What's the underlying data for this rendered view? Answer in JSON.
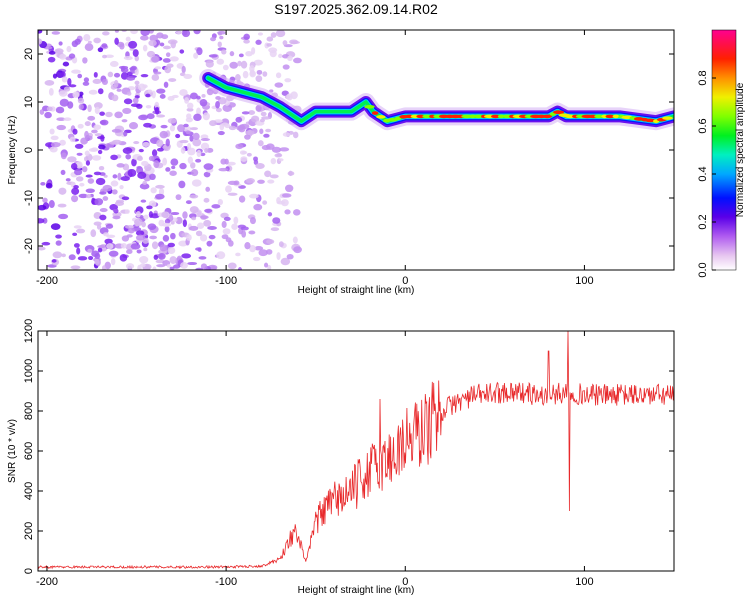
{
  "title": "S197.2025.362.09.14.R02",
  "chart_data": [
    {
      "type": "heatmap",
      "name": "spectrogram",
      "title": "S197.2025.362.09.14.R02",
      "xlabel": "Height of straight line (km)",
      "ylabel": "Frequency (Hz)",
      "xlim": [
        -205,
        150
      ],
      "ylim": [
        -25,
        25
      ],
      "x_ticks": [
        -200,
        -100,
        0,
        100
      ],
      "y_ticks": [
        -20,
        -10,
        0,
        10,
        20
      ],
      "colorbar": {
        "label": "Normalized spectral amplitude",
        "range": [
          0.0,
          1.0
        ],
        "ticks": [
          0.0,
          0.2,
          0.4,
          0.6,
          0.8
        ]
      },
      "ridge_line": {
        "description": "dominant frequency track",
        "x": [
          -110,
          -100,
          -90,
          -80,
          -70,
          -62,
          -58,
          -50,
          -40,
          -30,
          -22,
          -18,
          -10,
          0,
          10,
          20,
          40,
          60,
          80,
          85,
          90,
          100,
          120,
          140,
          150
        ],
        "y": [
          15,
          13,
          12,
          11,
          9,
          7,
          6,
          8,
          8,
          8,
          10,
          8,
          6,
          7,
          7,
          7,
          7,
          7,
          7,
          8,
          7,
          7,
          7,
          6,
          7
        ]
      },
      "noise_region": {
        "x_range": [
          -205,
          -60
        ],
        "y_range": [
          -25,
          25
        ]
      }
    },
    {
      "type": "line",
      "name": "snr",
      "xlabel": "Height of straight line (km)",
      "ylabel": "SNR (10 * v/v)",
      "xlim": [
        -205,
        150
      ],
      "ylim": [
        0,
        1200
      ],
      "x_ticks": [
        -200,
        -100,
        0,
        100
      ],
      "y_ticks": [
        0,
        200,
        400,
        600,
        800,
        1000,
        1200
      ],
      "color": "#e8292b",
      "envelope": {
        "x": [
          -205,
          -100,
          -80,
          -70,
          -62,
          -55,
          -50,
          -45,
          -40,
          -30,
          -20,
          -10,
          0,
          10,
          20,
          30,
          40,
          60,
          80,
          90,
          100,
          120,
          150
        ],
        "y": [
          20,
          20,
          25,
          60,
          200,
          50,
          250,
          300,
          350,
          400,
          500,
          550,
          650,
          700,
          800,
          850,
          880,
          900,
          870,
          900,
          880,
          880,
          880
        ]
      },
      "spikes": [
        {
          "x": -14,
          "y": 860
        },
        {
          "x": 80,
          "y": 1100
        },
        {
          "x": 91,
          "y": 1200
        },
        {
          "x": 91.5,
          "y": 300
        }
      ]
    }
  ]
}
